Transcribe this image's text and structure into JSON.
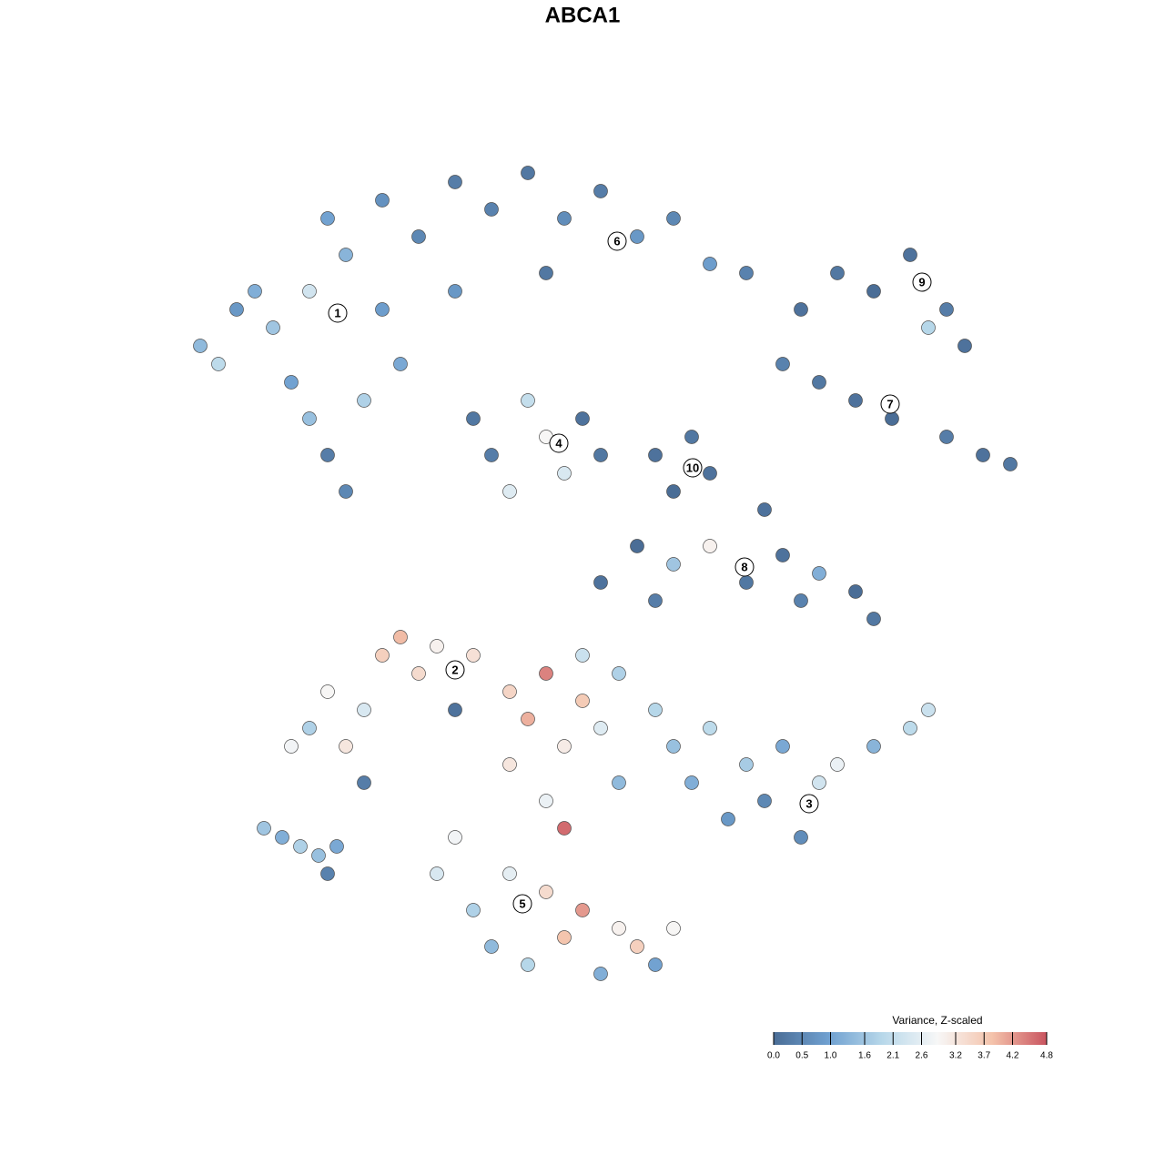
{
  "chart_data": {
    "type": "scatter",
    "title": "ABCA1",
    "xlim": [
      0,
      100
    ],
    "ylim": [
      0,
      100
    ],
    "x": [
      6,
      8,
      10,
      12,
      14,
      16,
      18,
      20,
      22,
      24,
      18,
      22,
      26,
      28,
      20,
      26,
      30,
      34,
      38,
      42,
      46,
      50,
      54,
      58,
      62,
      66,
      34,
      44,
      72,
      76,
      80,
      84,
      88,
      90,
      86,
      70,
      74,
      78,
      82,
      88,
      92,
      95,
      36,
      38,
      40,
      42,
      44,
      46,
      48,
      50,
      56,
      58,
      62,
      60,
      50,
      54,
      56,
      58,
      62,
      66,
      70,
      72,
      74,
      78,
      80,
      68,
      18,
      20,
      22,
      24,
      26,
      28,
      30,
      32,
      34,
      24,
      16,
      36,
      40,
      42,
      44,
      46,
      48,
      50,
      52,
      40,
      44,
      46,
      52,
      48,
      56,
      58,
      60,
      62,
      64,
      66,
      68,
      70,
      72,
      74,
      76,
      80,
      84,
      86,
      32,
      34,
      36,
      38,
      40,
      42,
      44,
      46,
      48,
      50,
      52,
      54,
      56,
      58,
      13,
      15,
      17,
      19,
      21,
      20
    ],
    "y": [
      74,
      72,
      78,
      80,
      76,
      70,
      66,
      62,
      58,
      68,
      80,
      84,
      78,
      72,
      88,
      90,
      86,
      92,
      89,
      93,
      88,
      91,
      86,
      88,
      83,
      82,
      80,
      82,
      78,
      82,
      80,
      84,
      78,
      74,
      76,
      72,
      70,
      68,
      66,
      64,
      62,
      61,
      66,
      62,
      58,
      68,
      64,
      60,
      66,
      62,
      62,
      58,
      60,
      64,
      48,
      52,
      46,
      50,
      52,
      48,
      51,
      46,
      49,
      47,
      44,
      56,
      32,
      36,
      30,
      34,
      40,
      42,
      38,
      41,
      34,
      26,
      30,
      40,
      36,
      33,
      38,
      30,
      35,
      32,
      38,
      28,
      24,
      21,
      26,
      40,
      34,
      30,
      26,
      32,
      22,
      28,
      24,
      30,
      20,
      26,
      28,
      30,
      32,
      34,
      16,
      20,
      12,
      8,
      16,
      6,
      14,
      9,
      12,
      5,
      10,
      8,
      6,
      10,
      21,
      20,
      19,
      18,
      19,
      16
    ],
    "values": [
      1.4,
      2.0,
      0.8,
      1.2,
      1.6,
      1.0,
      1.5,
      0.3,
      0.5,
      1.8,
      2.3,
      1.3,
      0.9,
      1.1,
      1.0,
      0.7,
      0.5,
      0.3,
      0.4,
      0.2,
      0.6,
      0.3,
      0.8,
      0.5,
      0.9,
      0.4,
      0.8,
      0.2,
      0.1,
      0.2,
      0.0,
      0.1,
      0.3,
      0.1,
      1.9,
      0.4,
      0.2,
      0.1,
      0.0,
      0.3,
      0.1,
      0.2,
      0.2,
      0.3,
      2.5,
      2.1,
      2.9,
      2.4,
      0.1,
      0.2,
      0.1,
      0.0,
      0.1,
      0.2,
      0.1,
      0.0,
      0.3,
      1.6,
      3.0,
      0.2,
      0.1,
      0.4,
      1.2,
      0.0,
      0.2,
      0.1,
      1.8,
      2.9,
      3.2,
      2.4,
      3.6,
      3.9,
      3.4,
      3.0,
      0.1,
      0.3,
      2.8,
      3.3,
      3.5,
      4.0,
      4.4,
      3.1,
      3.7,
      2.5,
      1.8,
      3.2,
      2.7,
      4.6,
      1.4,
      2.2,
      1.9,
      1.5,
      1.2,
      2.0,
      0.8,
      1.7,
      0.5,
      1.1,
      0.6,
      2.3,
      2.7,
      1.3,
      2.0,
      2.2,
      2.4,
      2.8,
      1.8,
      1.4,
      2.6,
      1.9,
      3.4,
      3.8,
      4.2,
      1.2,
      3.0,
      3.6,
      1.0,
      2.9,
      1.6,
      1.2,
      1.8,
      1.5,
      1.1,
      0.4
    ],
    "clusters": [
      {
        "label": "1",
        "x": 21.1,
        "y": 77.6
      },
      {
        "label": "2",
        "x": 34.0,
        "y": 38.4
      },
      {
        "label": "3",
        "x": 72.9,
        "y": 23.7
      },
      {
        "label": "4",
        "x": 45.4,
        "y": 63.3
      },
      {
        "label": "5",
        "x": 41.4,
        "y": 12.7
      },
      {
        "label": "6",
        "x": 51.8,
        "y": 85.5
      },
      {
        "label": "7",
        "x": 81.8,
        "y": 67.6
      },
      {
        "label": "8",
        "x": 65.8,
        "y": 49.7
      },
      {
        "label": "9",
        "x": 85.3,
        "y": 81.0
      },
      {
        "label": "10",
        "x": 60.1,
        "y": 60.6
      }
    ],
    "colorbar": {
      "title": "Variance, Z-scaled",
      "clim": [
        0,
        4.8
      ],
      "colors": [
        "#4a6d96",
        "#6fa0d0",
        "#b8d8ea",
        "#f7f7f7",
        "#f4c3ab",
        "#c9545f"
      ],
      "ticks": [
        {
          "value": 0,
          "label": "0.0"
        },
        0.5,
        {
          "value": 1,
          "label": "1.0"
        },
        1.6,
        2.1,
        2.6,
        3.2,
        3.7,
        4.2,
        4.8
      ]
    }
  }
}
